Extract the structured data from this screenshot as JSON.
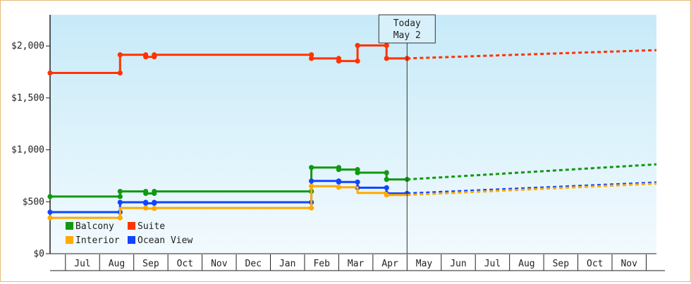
{
  "chart_data": {
    "type": "line",
    "ylim": [
      0,
      2300
    ],
    "y_ticks": [
      {
        "value": 0,
        "label": "$0"
      },
      {
        "value": 500,
        "label": "$500"
      },
      {
        "value": 1000,
        "label": "$1,000"
      },
      {
        "value": 1500,
        "label": "$1,500"
      },
      {
        "value": 2000,
        "label": "$2,000"
      }
    ],
    "x_months": [
      "Jul",
      "Aug",
      "Sep",
      "Oct",
      "Nov",
      "Dec",
      "Jan",
      "Feb",
      "Mar",
      "Apr",
      "May",
      "Jun",
      "Jul",
      "Aug",
      "Sep",
      "Oct",
      "Nov"
    ],
    "x_range_months": [
      -0.45,
      17.3
    ],
    "today": {
      "x": 10.0,
      "line1": "Today",
      "line2": "May 2"
    },
    "grid": false,
    "legend_placement": "bottom-left",
    "series": [
      {
        "name": "Suite",
        "color": "#ff3300",
        "points": [
          [
            -0.45,
            1740
          ],
          [
            1.6,
            1740
          ],
          [
            1.6,
            1915
          ],
          [
            2.35,
            1915
          ],
          [
            2.35,
            1895
          ],
          [
            2.6,
            1895
          ],
          [
            2.6,
            1915
          ],
          [
            7.2,
            1915
          ],
          [
            7.2,
            1880
          ],
          [
            8.0,
            1880
          ],
          [
            8.0,
            1855
          ],
          [
            8.55,
            1855
          ],
          [
            8.55,
            2005
          ],
          [
            9.4,
            2005
          ],
          [
            9.4,
            1880
          ],
          [
            10.0,
            1880
          ]
        ],
        "markers": [
          [
            -0.45,
            1740
          ],
          [
            1.6,
            1740
          ],
          [
            1.6,
            1915
          ],
          [
            2.35,
            1915
          ],
          [
            2.35,
            1895
          ],
          [
            2.6,
            1895
          ],
          [
            2.6,
            1915
          ],
          [
            7.2,
            1915
          ],
          [
            7.2,
            1880
          ],
          [
            8.0,
            1880
          ],
          [
            8.0,
            1855
          ],
          [
            8.55,
            1855
          ],
          [
            8.55,
            2005
          ],
          [
            9.4,
            2005
          ],
          [
            9.4,
            1880
          ],
          [
            10.0,
            1880
          ]
        ],
        "forecast": [
          [
            10.0,
            1880
          ],
          [
            17.3,
            1960
          ]
        ]
      },
      {
        "name": "Balcony",
        "color": "#119911",
        "points": [
          [
            -0.45,
            550
          ],
          [
            1.6,
            550
          ],
          [
            1.6,
            600
          ],
          [
            2.35,
            600
          ],
          [
            2.35,
            580
          ],
          [
            2.6,
            580
          ],
          [
            2.6,
            600
          ],
          [
            7.2,
            600
          ],
          [
            7.2,
            830
          ],
          [
            8.0,
            830
          ],
          [
            8.0,
            810
          ],
          [
            8.55,
            810
          ],
          [
            8.55,
            780
          ],
          [
            9.4,
            780
          ],
          [
            9.4,
            715
          ],
          [
            10.0,
            715
          ]
        ],
        "markers": [
          [
            -0.45,
            550
          ],
          [
            1.6,
            550
          ],
          [
            1.6,
            600
          ],
          [
            2.35,
            600
          ],
          [
            2.35,
            580
          ],
          [
            2.6,
            580
          ],
          [
            2.6,
            600
          ],
          [
            7.2,
            600
          ],
          [
            7.2,
            830
          ],
          [
            8.0,
            830
          ],
          [
            8.0,
            810
          ],
          [
            8.55,
            810
          ],
          [
            8.55,
            780
          ],
          [
            9.4,
            780
          ],
          [
            9.4,
            715
          ],
          [
            10.0,
            715
          ]
        ],
        "forecast": [
          [
            10.0,
            715
          ],
          [
            17.3,
            860
          ]
        ]
      },
      {
        "name": "Ocean View",
        "color": "#1144ff",
        "points": [
          [
            -0.45,
            400
          ],
          [
            1.6,
            400
          ],
          [
            1.6,
            495
          ],
          [
            2.35,
            495
          ],
          [
            2.35,
            485
          ],
          [
            2.6,
            485
          ],
          [
            2.6,
            495
          ],
          [
            7.2,
            495
          ],
          [
            7.2,
            700
          ],
          [
            8.0,
            700
          ],
          [
            8.0,
            690
          ],
          [
            8.55,
            690
          ],
          [
            8.55,
            635
          ],
          [
            9.4,
            635
          ],
          [
            9.4,
            580
          ],
          [
            10.0,
            580
          ]
        ],
        "markers": [
          [
            -0.45,
            400
          ],
          [
            1.6,
            400
          ],
          [
            1.6,
            495
          ],
          [
            2.35,
            495
          ],
          [
            2.35,
            485
          ],
          [
            2.6,
            485
          ],
          [
            2.6,
            495
          ],
          [
            7.2,
            495
          ],
          [
            7.2,
            700
          ],
          [
            8.0,
            700
          ],
          [
            8.0,
            690
          ],
          [
            8.55,
            690
          ],
          [
            8.55,
            635
          ],
          [
            9.4,
            635
          ],
          [
            9.4,
            580
          ],
          [
            10.0,
            580
          ]
        ],
        "forecast": [
          [
            10.0,
            580
          ],
          [
            17.3,
            685
          ]
        ]
      },
      {
        "name": "Interior",
        "color": "#ffaa00",
        "points": [
          [
            -0.45,
            345
          ],
          [
            1.6,
            345
          ],
          [
            1.6,
            440
          ],
          [
            2.35,
            440
          ],
          [
            2.35,
            435
          ],
          [
            2.6,
            435
          ],
          [
            2.6,
            440
          ],
          [
            7.2,
            440
          ],
          [
            7.2,
            650
          ],
          [
            8.0,
            650
          ],
          [
            8.0,
            640
          ],
          [
            8.55,
            640
          ],
          [
            8.55,
            585
          ],
          [
            9.4,
            585
          ],
          [
            9.4,
            565
          ],
          [
            10.0,
            565
          ]
        ],
        "markers": [
          [
            -0.45,
            345
          ],
          [
            1.6,
            345
          ],
          [
            2.35,
            440
          ],
          [
            2.6,
            435
          ],
          [
            7.2,
            440
          ],
          [
            7.2,
            650
          ],
          [
            8.0,
            640
          ],
          [
            9.4,
            565
          ]
        ],
        "forecast": [
          [
            10.0,
            565
          ],
          [
            17.3,
            675
          ]
        ]
      }
    ],
    "legend": [
      {
        "name": "Balcony",
        "color": "#119911"
      },
      {
        "name": "Suite",
        "color": "#ff3300"
      },
      {
        "name": "Interior",
        "color": "#ffaa00"
      },
      {
        "name": "Ocean View",
        "color": "#1144ff"
      }
    ]
  }
}
